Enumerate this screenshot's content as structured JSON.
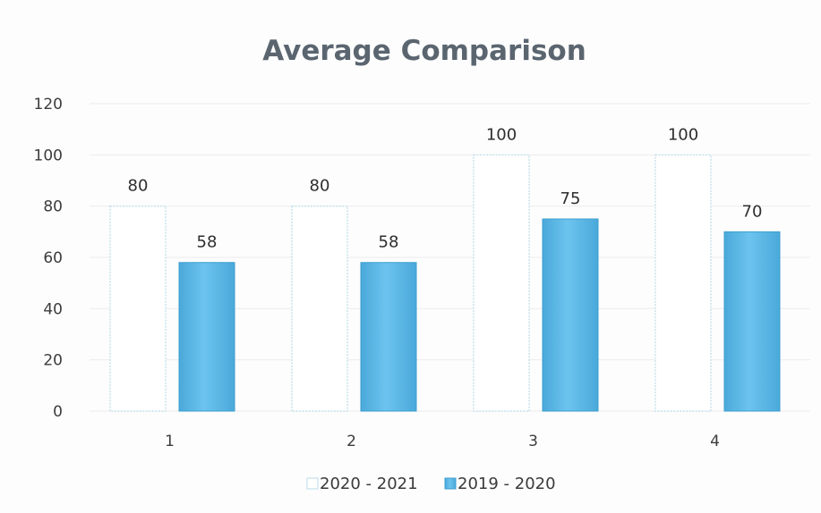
{
  "chart_data": {
    "type": "bar",
    "title": "Average Comparison",
    "xlabel": "",
    "ylabel": "",
    "categories": [
      "1",
      "2",
      "3",
      "4"
    ],
    "ylim": [
      0,
      120
    ],
    "yticks": [
      0,
      20,
      40,
      60,
      80,
      100,
      120
    ],
    "grid": true,
    "legend_position": "bottom",
    "series": [
      {
        "name": "2020 - 2021",
        "values": [
          80,
          80,
          100,
          100
        ],
        "color": "#ffffff",
        "stroke": "#b9dbe8"
      },
      {
        "name": "2019 - 2020",
        "values": [
          58,
          58,
          75,
          70
        ],
        "color": "#5bb8e6",
        "stroke": "#3d9fcf"
      }
    ]
  }
}
